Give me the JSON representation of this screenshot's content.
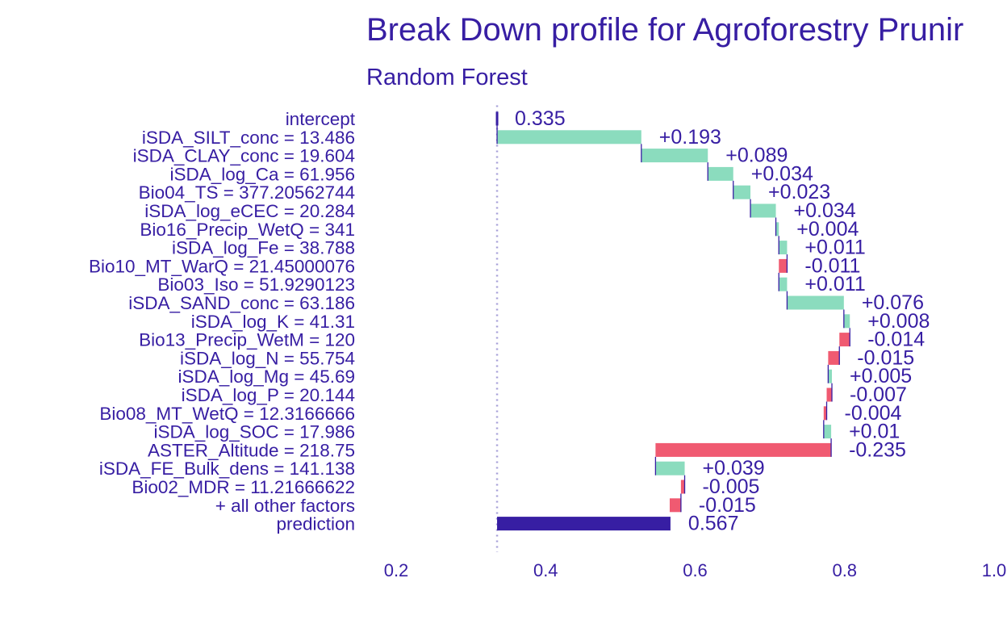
{
  "chart_data": {
    "type": "bar",
    "title": "Break Down profile for Agroforestry Prunir",
    "subtitle": "Random Forest",
    "xlim": [
      0.2,
      1.0
    ],
    "xticks": [
      "0.2",
      "0.4",
      "0.6",
      "0.8",
      "1.0"
    ],
    "baseline": 0.335,
    "colors": {
      "positive": "#8bdcbe",
      "negative": "#f05a71",
      "prediction": "#371ea3",
      "text": "#371ea3",
      "baseline_line": "#a7a0d8"
    },
    "rows": [
      {
        "label": "intercept",
        "value": 0.335,
        "display": "0.335",
        "kind": "intercept"
      },
      {
        "label": "iSDA_SILT_conc = 13.486",
        "value": 0.193,
        "display": "+0.193",
        "kind": "positive"
      },
      {
        "label": "iSDA_CLAY_conc = 19.604",
        "value": 0.089,
        "display": "+0.089",
        "kind": "positive"
      },
      {
        "label": "iSDA_log_Ca = 61.956",
        "value": 0.034,
        "display": "+0.034",
        "kind": "positive"
      },
      {
        "label": "Bio04_TS = 377.20562744",
        "value": 0.023,
        "display": "+0.023",
        "kind": "positive"
      },
      {
        "label": "iSDA_log_eCEC = 20.284",
        "value": 0.034,
        "display": "+0.034",
        "kind": "positive"
      },
      {
        "label": "Bio16_Precip_WetQ = 341",
        "value": 0.004,
        "display": "+0.004",
        "kind": "positive"
      },
      {
        "label": "iSDA_log_Fe = 38.788",
        "value": 0.011,
        "display": "+0.011",
        "kind": "positive"
      },
      {
        "label": "Bio10_MT_WarQ = 21.45000076",
        "value": -0.011,
        "display": "-0.011",
        "kind": "negative"
      },
      {
        "label": "Bio03_Iso = 51.9290123",
        "value": 0.011,
        "display": "+0.011",
        "kind": "positive"
      },
      {
        "label": "iSDA_SAND_conc = 63.186",
        "value": 0.076,
        "display": "+0.076",
        "kind": "positive"
      },
      {
        "label": "iSDA_log_K = 41.31",
        "value": 0.008,
        "display": "+0.008",
        "kind": "positive"
      },
      {
        "label": "Bio13_Precip_WetM = 120",
        "value": -0.014,
        "display": "-0.014",
        "kind": "negative"
      },
      {
        "label": "iSDA_log_N = 55.754",
        "value": -0.015,
        "display": "-0.015",
        "kind": "negative"
      },
      {
        "label": "iSDA_log_Mg = 45.69",
        "value": 0.005,
        "display": "+0.005",
        "kind": "positive"
      },
      {
        "label": "iSDA_log_P = 20.144",
        "value": -0.007,
        "display": "-0.007",
        "kind": "negative"
      },
      {
        "label": "Bio08_MT_WetQ = 12.3166666",
        "value": -0.004,
        "display": "-0.004",
        "kind": "negative"
      },
      {
        "label": "iSDA_log_SOC = 17.986",
        "value": 0.01,
        "display": "+0.01",
        "kind": "positive"
      },
      {
        "label": "ASTER_Altitude = 218.75",
        "value": -0.235,
        "display": "-0.235",
        "kind": "negative"
      },
      {
        "label": "iSDA_FE_Bulk_dens = 141.138",
        "value": 0.039,
        "display": "+0.039",
        "kind": "positive"
      },
      {
        "label": "Bio02_MDR = 11.21666622",
        "value": -0.005,
        "display": "-0.005",
        "kind": "negative"
      },
      {
        "label": "+ all other factors",
        "value": -0.015,
        "display": "-0.015",
        "kind": "negative"
      },
      {
        "label": "prediction",
        "value": 0.567,
        "display": "0.567",
        "kind": "prediction"
      }
    ]
  }
}
